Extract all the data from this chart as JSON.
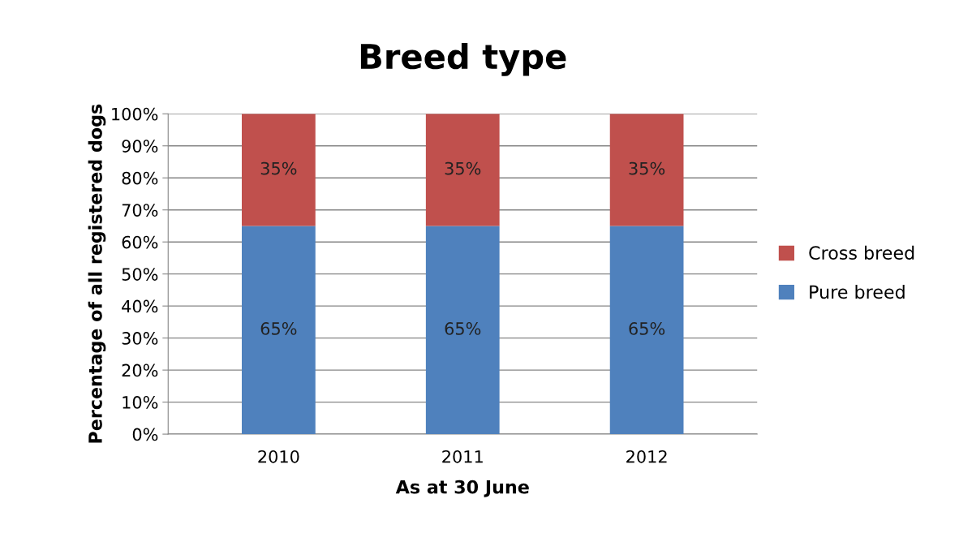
{
  "chart_data": {
    "type": "bar",
    "title": "Breed type",
    "xlabel": "As at 30 June",
    "ylabel": "Percentage of all registered dogs",
    "categories": [
      "2010",
      "2011",
      "2012"
    ],
    "stacked": true,
    "series": [
      {
        "name": "Pure breed",
        "color": "#4f81bd",
        "values": [
          65,
          65,
          65
        ],
        "value_labels": [
          "65%",
          "65%",
          "65%"
        ]
      },
      {
        "name": "Cross breed",
        "color": "#c0504d",
        "values": [
          35,
          35,
          35
        ],
        "value_labels": [
          "35%",
          "35%",
          "35%"
        ]
      }
    ],
    "ylim": [
      0,
      100
    ],
    "yticks": [
      {
        "value": 0,
        "label": "0%"
      },
      {
        "value": 10,
        "label": "10%"
      },
      {
        "value": 20,
        "label": "20%"
      },
      {
        "value": 30,
        "label": "30%"
      },
      {
        "value": 40,
        "label": "40%"
      },
      {
        "value": 50,
        "label": "50%"
      },
      {
        "value": 60,
        "label": "60%"
      },
      {
        "value": 70,
        "label": "70%"
      },
      {
        "value": 80,
        "label": "80%"
      },
      {
        "value": 90,
        "label": "90%"
      },
      {
        "value": 100,
        "label": "100%"
      }
    ],
    "grid": "y",
    "legend": "right"
  }
}
